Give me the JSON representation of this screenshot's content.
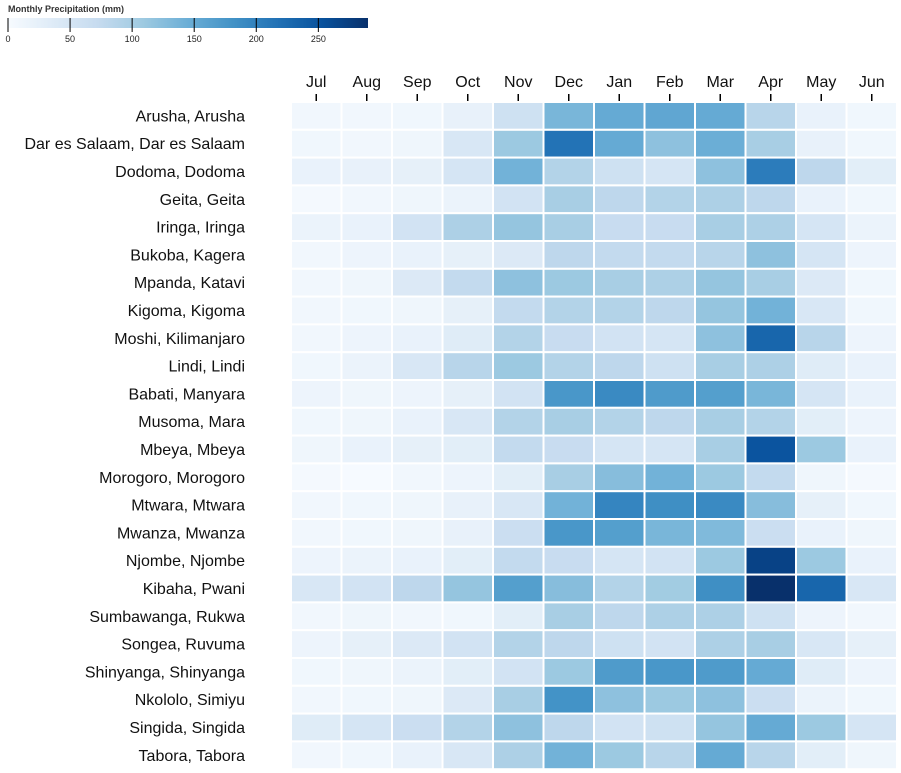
{
  "chart_data": {
    "type": "heatmap",
    "legend": {
      "title": "Monthly Precipitation (mm)",
      "ticks": [
        0,
        50,
        100,
        150,
        200,
        250
      ],
      "domain": [
        0,
        290
      ],
      "color_low": "#f7fbff",
      "color_high": "#08306b"
    },
    "months": [
      "Jul",
      "Aug",
      "Sep",
      "Oct",
      "Nov",
      "Dec",
      "Jan",
      "Feb",
      "Mar",
      "Apr",
      "May",
      "Jun"
    ],
    "rows": [
      {
        "label": "Arusha, Arusha",
        "values": [
          8,
          8,
          10,
          22,
          60,
          135,
          150,
          155,
          150,
          85,
          20,
          10
        ]
      },
      {
        "label": "Dar es Salaam, Dar es Salaam",
        "values": [
          10,
          8,
          12,
          45,
          110,
          215,
          150,
          120,
          145,
          100,
          22,
          10
        ]
      },
      {
        "label": "Dodoma, Dodoma",
        "values": [
          20,
          22,
          25,
          50,
          140,
          90,
          60,
          50,
          120,
          205,
          80,
          30
        ]
      },
      {
        "label": "Geita, Geita",
        "values": [
          5,
          8,
          12,
          18,
          55,
          100,
          80,
          90,
          95,
          80,
          20,
          10
        ]
      },
      {
        "label": "Iringa, Iringa",
        "values": [
          18,
          20,
          55,
          95,
          115,
          100,
          70,
          70,
          100,
          95,
          50,
          18
        ]
      },
      {
        "label": "Bukoba, Kagera",
        "values": [
          8,
          15,
          20,
          25,
          40,
          80,
          75,
          75,
          85,
          120,
          50,
          15
        ]
      },
      {
        "label": "Mpanda, Katavi",
        "values": [
          8,
          12,
          40,
          75,
          120,
          110,
          100,
          95,
          115,
          100,
          40,
          10
        ]
      },
      {
        "label": "Kigoma, Kigoma",
        "values": [
          8,
          10,
          12,
          25,
          75,
          90,
          90,
          80,
          115,
          140,
          45,
          10
        ]
      },
      {
        "label": "Moshi, Kilimanjaro",
        "values": [
          8,
          15,
          20,
          35,
          90,
          70,
          55,
          50,
          120,
          230,
          85,
          15
        ]
      },
      {
        "label": "Lindi, Lindi",
        "values": [
          10,
          18,
          45,
          85,
          110,
          90,
          80,
          60,
          100,
          95,
          35,
          20
        ]
      },
      {
        "label": "Babati, Manyara",
        "values": [
          15,
          12,
          15,
          25,
          55,
          175,
          190,
          170,
          165,
          135,
          50,
          20
        ]
      },
      {
        "label": "Musoma, Mara",
        "values": [
          10,
          12,
          20,
          45,
          90,
          100,
          90,
          80,
          100,
          90,
          30,
          15
        ]
      },
      {
        "label": "Mbeya, Mbeya",
        "values": [
          12,
          20,
          25,
          30,
          75,
          70,
          50,
          50,
          100,
          250,
          110,
          20
        ]
      },
      {
        "label": "Morogoro, Morogoro",
        "values": [
          5,
          2,
          8,
          15,
          30,
          100,
          125,
          140,
          110,
          75,
          12,
          5
        ]
      },
      {
        "label": "Mtwara, Mtwara",
        "values": [
          8,
          10,
          12,
          22,
          45,
          140,
          195,
          185,
          190,
          125,
          25,
          10
        ]
      },
      {
        "label": "Mwanza, Mwanza",
        "values": [
          8,
          10,
          12,
          22,
          65,
          175,
          165,
          135,
          130,
          65,
          20,
          12
        ]
      },
      {
        "label": "Njombe, Njombe",
        "values": [
          15,
          18,
          20,
          30,
          75,
          70,
          50,
          55,
          110,
          270,
          110,
          20
        ]
      },
      {
        "label": "Kibaha, Pwani",
        "values": [
          45,
          55,
          80,
          115,
          165,
          125,
          90,
          105,
          185,
          290,
          230,
          45
        ]
      },
      {
        "label": "Sumbawanga, Rukwa",
        "values": [
          8,
          12,
          8,
          10,
          30,
          100,
          80,
          95,
          95,
          60,
          15,
          8
        ]
      },
      {
        "label": "Songea, Ruvuma",
        "values": [
          15,
          25,
          40,
          55,
          90,
          80,
          60,
          55,
          95,
          100,
          45,
          25
        ]
      },
      {
        "label": "Shinyanga, Shinyanga",
        "values": [
          10,
          12,
          18,
          30,
          55,
          110,
          170,
          175,
          170,
          150,
          35,
          15
        ]
      },
      {
        "label": "Nkololo, Simiyu",
        "values": [
          8,
          10,
          12,
          40,
          100,
          180,
          120,
          110,
          120,
          65,
          18,
          10
        ]
      },
      {
        "label": "Singida, Singida",
        "values": [
          35,
          50,
          65,
          90,
          120,
          80,
          55,
          60,
          115,
          150,
          110,
          50
        ]
      },
      {
        "label": "Tabora, Tabora",
        "values": [
          8,
          10,
          20,
          45,
          95,
          140,
          110,
          85,
          150,
          85,
          30,
          12
        ]
      }
    ]
  }
}
